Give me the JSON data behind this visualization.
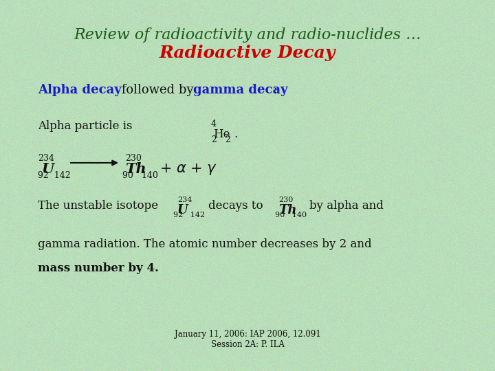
{
  "bg_color": "#c5e8c5",
  "title_line1": "Review of radioactivity and radio-nuclides …",
  "title_line1_color": "#1a5c1a",
  "title_line2": "Radioactive Decay",
  "title_line2_color": "#cc0000",
  "blue": "#1a1acc",
  "black": "#111111",
  "footer": "January 11, 2006: IAP 2006, 12.091\nSession 2A: P. ILA"
}
